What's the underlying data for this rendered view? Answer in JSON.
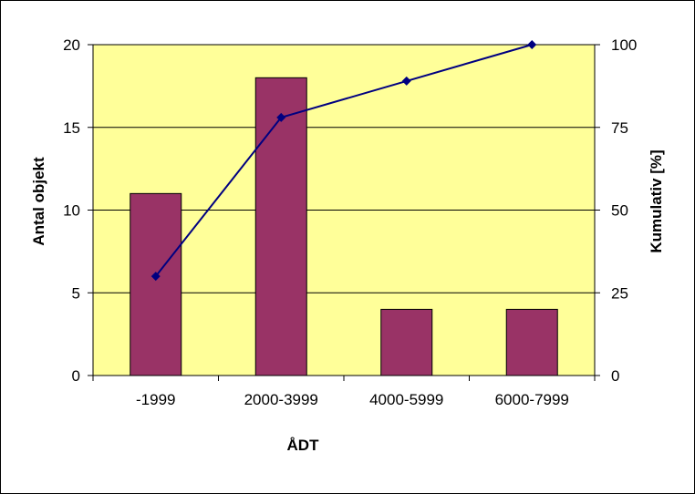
{
  "chart_data": {
    "type": "bar",
    "categories": [
      "-1999",
      "2000-3999",
      "4000-5999",
      "6000-7999"
    ],
    "series": [
      {
        "type": "bar",
        "axis": "left",
        "values": [
          11,
          18,
          4,
          4
        ]
      },
      {
        "type": "line",
        "axis": "right",
        "values": [
          30,
          78,
          89,
          100
        ]
      }
    ],
    "xlabel": "ÅDT",
    "ylabel": "Antal objekt",
    "y2label": "Kumulativ [%]",
    "ylim": [
      0,
      20
    ],
    "y2lim": [
      0,
      100
    ],
    "yticks": [
      "0",
      "5",
      "10",
      "15",
      "20"
    ],
    "y2ticks": [
      "0",
      "25",
      "50",
      "75",
      "100"
    ],
    "grid": true,
    "colors": {
      "plot_background": "#FFFF99",
      "bar": "#993366",
      "line": "#000080",
      "grid": "#000000"
    }
  }
}
